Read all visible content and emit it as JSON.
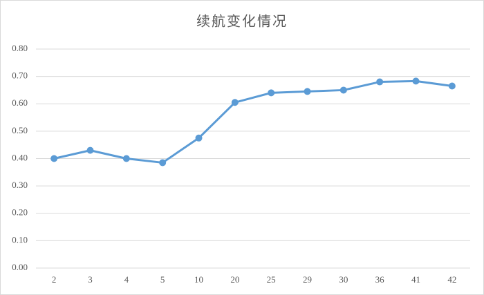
{
  "chart_data": {
    "type": "line",
    "title": "续航变化情况",
    "categories": [
      "2",
      "3",
      "4",
      "5",
      "10",
      "20",
      "25",
      "29",
      "30",
      "36",
      "41",
      "42"
    ],
    "values": [
      0.4,
      0.43,
      0.4,
      0.385,
      0.475,
      0.605,
      0.64,
      0.645,
      0.65,
      0.68,
      0.683,
      0.665
    ],
    "color": "#5b9bd5",
    "ylim": [
      0,
      0.8
    ],
    "yticks": [
      {
        "value": 0,
        "label": "0.00"
      },
      {
        "value": 0.1,
        "label": "0.10"
      },
      {
        "value": 0.2,
        "label": "0.20"
      },
      {
        "value": 0.3,
        "label": "0.30"
      },
      {
        "value": 0.4,
        "label": "0.40"
      },
      {
        "value": 0.5,
        "label": "0.50"
      },
      {
        "value": 0.6,
        "label": "0.60"
      },
      {
        "value": 0.7,
        "label": "0.70"
      },
      {
        "value": 0.8,
        "label": "0.80"
      }
    ],
    "grid": true
  }
}
